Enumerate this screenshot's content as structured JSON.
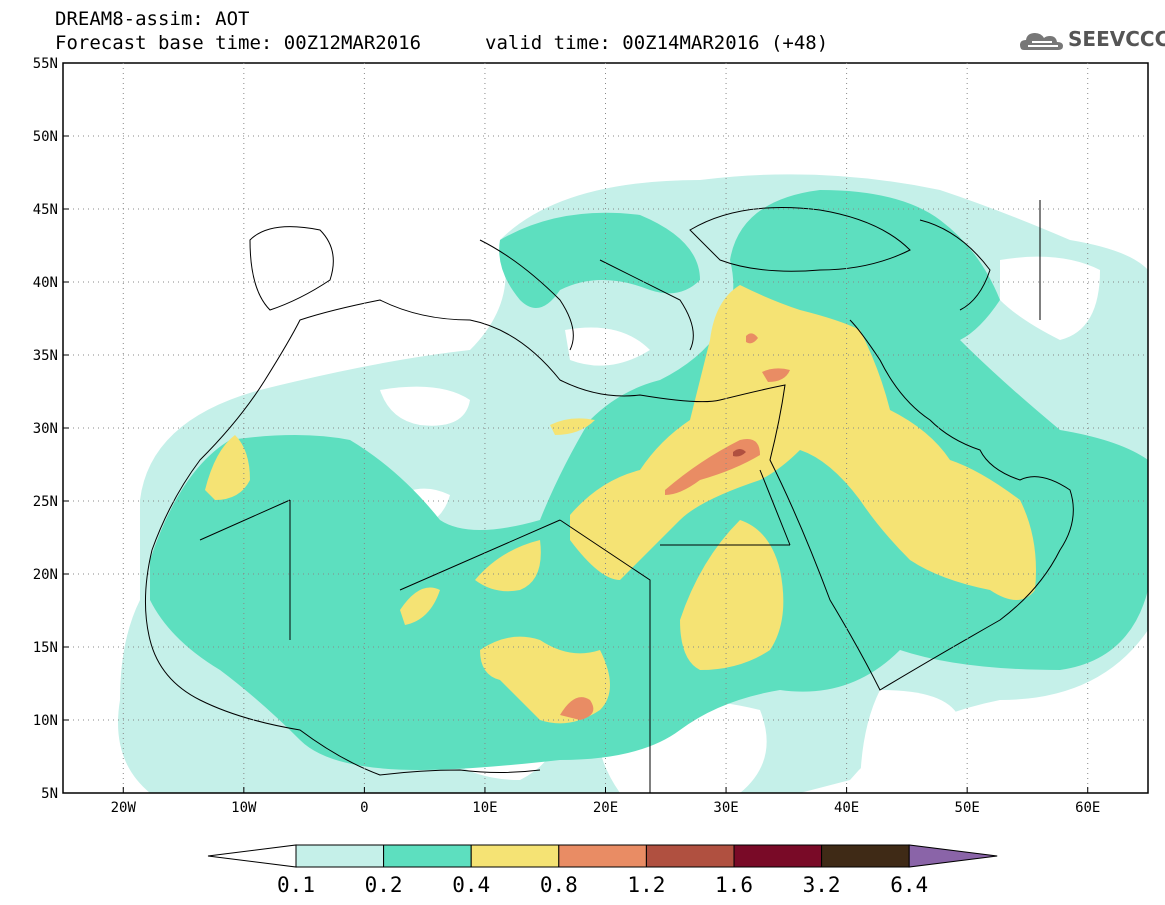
{
  "title": {
    "line1": "DREAM8-assim: AOT",
    "line2": "Forecast base time: 00Z12MAR2016",
    "line3": "valid time: 00Z14MAR2016 (+48)"
  },
  "logo": {
    "text": "SEEVCCC",
    "icon": "cloud-logo-icon"
  },
  "map": {
    "lon_range": [
      -25,
      65
    ],
    "lat_range": [
      5,
      55
    ],
    "lat_ticks": [
      "55N",
      "50N",
      "45N",
      "40N",
      "35N",
      "30N",
      "25N",
      "20N",
      "15N",
      "10N",
      "5N"
    ],
    "lon_ticks": [
      "20W",
      "10W",
      "0",
      "10E",
      "20E",
      "30E",
      "40E",
      "50E",
      "60E"
    ],
    "grid": "dotted"
  },
  "colorbar": {
    "labels": [
      "0.1",
      "0.2",
      "0.4",
      "0.8",
      "1.2",
      "1.6",
      "3.2",
      "6.4"
    ],
    "colors": [
      "#ffffff",
      "#c5f0e9",
      "#5ddfbf",
      "#f5e374",
      "#e98c64",
      "#b05040",
      "#790a27",
      "#3f2a16",
      "#8a64a8"
    ]
  }
}
